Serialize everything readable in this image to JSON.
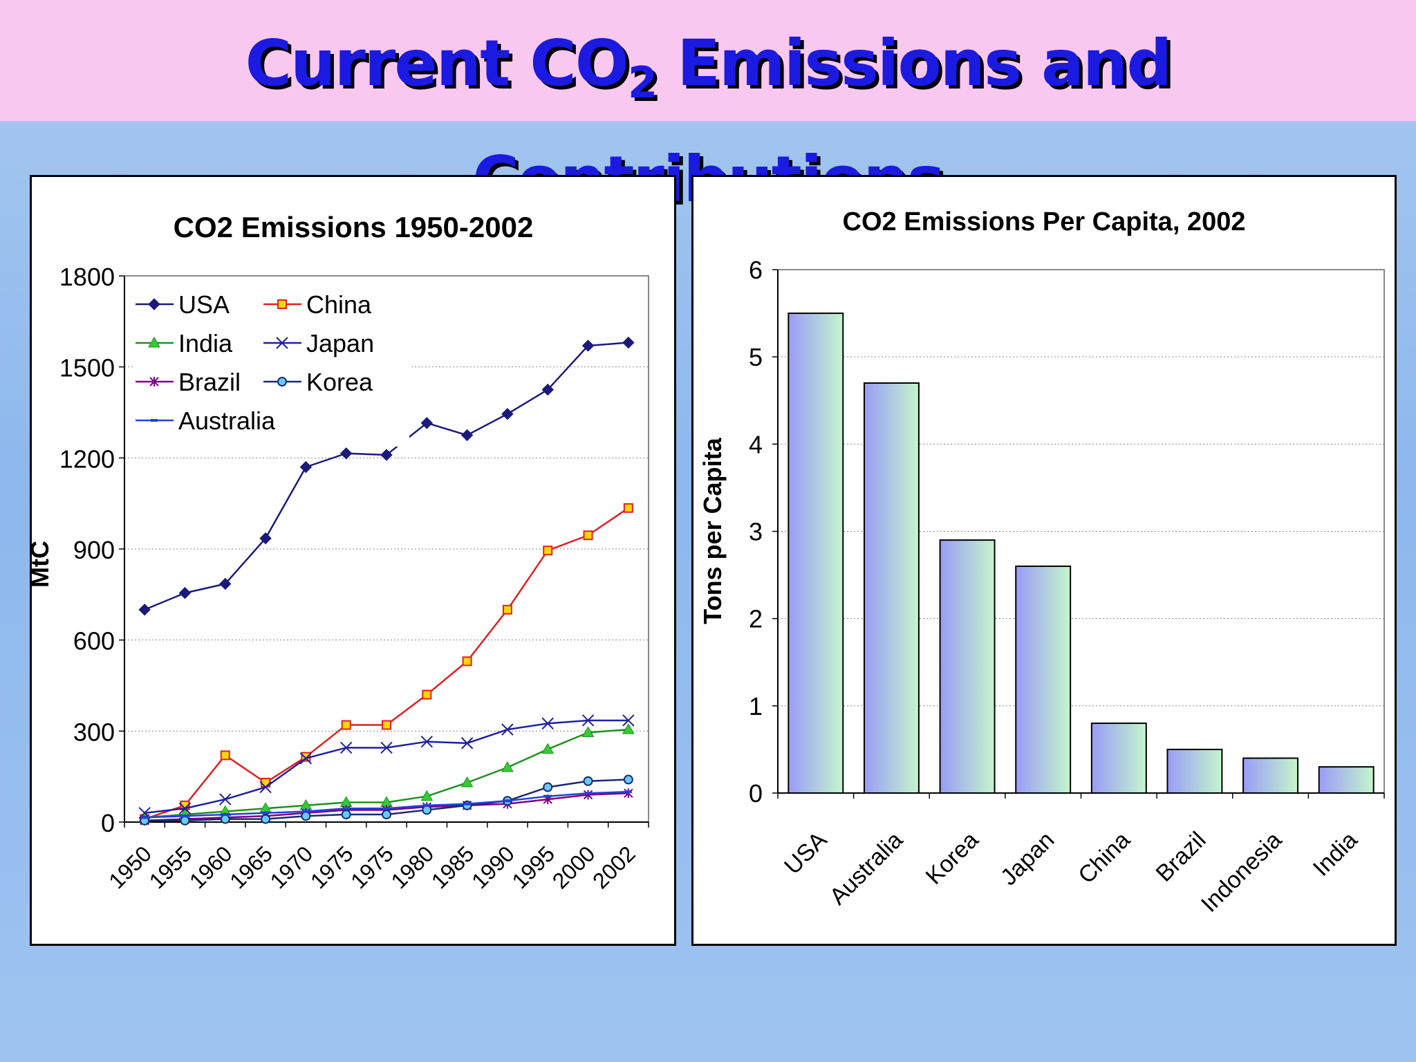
{
  "slide": {
    "title_main": "Current CO",
    "title_sub": "2",
    "title_rest": " Emissions and Contributions"
  },
  "chart_data": [
    {
      "type": "line",
      "title": "CO2 Emissions 1950-2002",
      "xlabel": "",
      "ylabel": "MtC",
      "ylim": [
        0,
        1800
      ],
      "yticks": [
        0,
        300,
        600,
        900,
        1200,
        1500,
        1800
      ],
      "grid": true,
      "legend_position": "top-left",
      "x_tick_labels": [
        "1950",
        "1955",
        "1960",
        "1965",
        "1970",
        "1975",
        "1975",
        "1980",
        "1985",
        "1990",
        "1995",
        "2000",
        "2002"
      ],
      "series": [
        {
          "name": "USA",
          "color": "#1a1a7a",
          "marker": "diamond",
          "values": [
            700,
            755,
            785,
            935,
            1170,
            1215,
            1210,
            1315,
            1275,
            1345,
            1425,
            1570,
            1580
          ]
        },
        {
          "name": "China",
          "color": "#e02020",
          "marker": "square",
          "values": [
            10,
            55,
            220,
            130,
            215,
            320,
            320,
            420,
            530,
            700,
            895,
            945,
            1035
          ]
        },
        {
          "name": "India",
          "color": "#209020",
          "marker": "triangle",
          "values": [
            15,
            25,
            35,
            45,
            55,
            65,
            65,
            85,
            130,
            180,
            240,
            295,
            305
          ]
        },
        {
          "name": "Japan",
          "color": "#2020a0",
          "marker": "x",
          "values": [
            30,
            45,
            75,
            115,
            210,
            245,
            245,
            265,
            260,
            305,
            325,
            335,
            335
          ]
        },
        {
          "name": "Brazil",
          "color": "#800080",
          "marker": "star",
          "values": [
            5,
            10,
            15,
            20,
            30,
            40,
            40,
            50,
            55,
            60,
            75,
            90,
            95
          ]
        },
        {
          "name": "Korea",
          "color": "#1a2a6a",
          "marker": "circle",
          "values": [
            5,
            5,
            10,
            10,
            20,
            25,
            25,
            40,
            55,
            70,
            115,
            135,
            140
          ]
        },
        {
          "name": "Australia",
          "color": "#2040e0",
          "marker": "dash",
          "values": [
            15,
            20,
            25,
            30,
            35,
            45,
            45,
            55,
            60,
            70,
            85,
            95,
            100
          ]
        }
      ]
    },
    {
      "type": "bar",
      "title": "CO2 Emissions Per Capita, 2002",
      "xlabel": "",
      "ylabel": "Tons per Capita",
      "ylim": [
        0,
        6
      ],
      "yticks": [
        0,
        1,
        2,
        3,
        4,
        5,
        6
      ],
      "grid": true,
      "categories": [
        "USA",
        "Australia",
        "Korea",
        "Japan",
        "China",
        "Brazil",
        "Indonesia",
        "India"
      ],
      "values": [
        5.5,
        4.7,
        2.9,
        2.6,
        0.8,
        0.5,
        0.4,
        0.3
      ]
    }
  ]
}
